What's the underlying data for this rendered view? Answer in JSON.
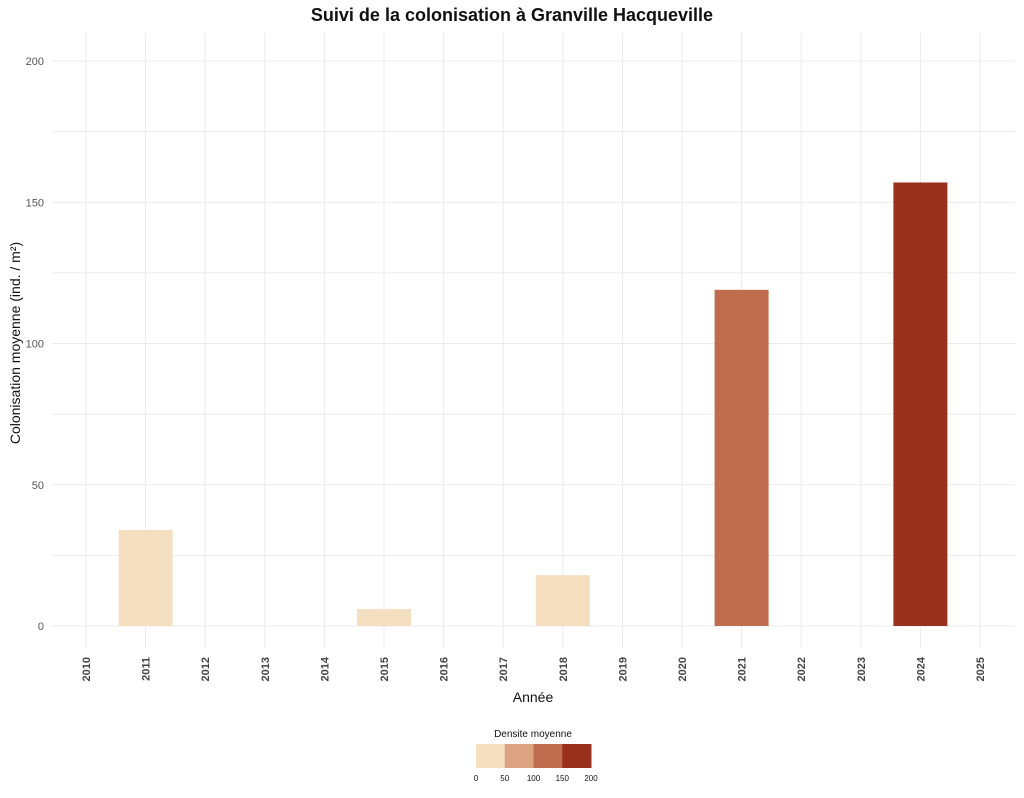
{
  "chart_data": {
    "type": "bar",
    "title": "Suivi de la colonisation à Granville Hacqueville",
    "xlabel": "Année",
    "ylabel": "Colonisation moyenne (ind. / m²)",
    "x_ticks": [
      "2010",
      "2011",
      "2012",
      "2013",
      "2014",
      "2015",
      "2016",
      "2017",
      "2018",
      "2019",
      "2020",
      "2021",
      "2022",
      "2023",
      "2024",
      "2025"
    ],
    "categories": [
      "2011",
      "2015",
      "2018",
      "2021",
      "2024"
    ],
    "values": [
      34,
      6,
      18,
      119,
      157
    ],
    "colors": [
      "#f5dfc1",
      "#f5dfc1",
      "#f5dfc1",
      "#c06c4e",
      "#9a311e"
    ],
    "ylim": [
      0,
      210
    ],
    "y_ticks": [
      0,
      50,
      100,
      150,
      200
    ],
    "grid": true,
    "legend": {
      "title": "Densite moyenne",
      "placement": "bottom",
      "ticks": [
        "0",
        "50",
        "100",
        "150",
        "200"
      ],
      "colors": [
        "#f5dfc1",
        "#dca383",
        "#c06c4e",
        "#9a311e"
      ]
    }
  }
}
